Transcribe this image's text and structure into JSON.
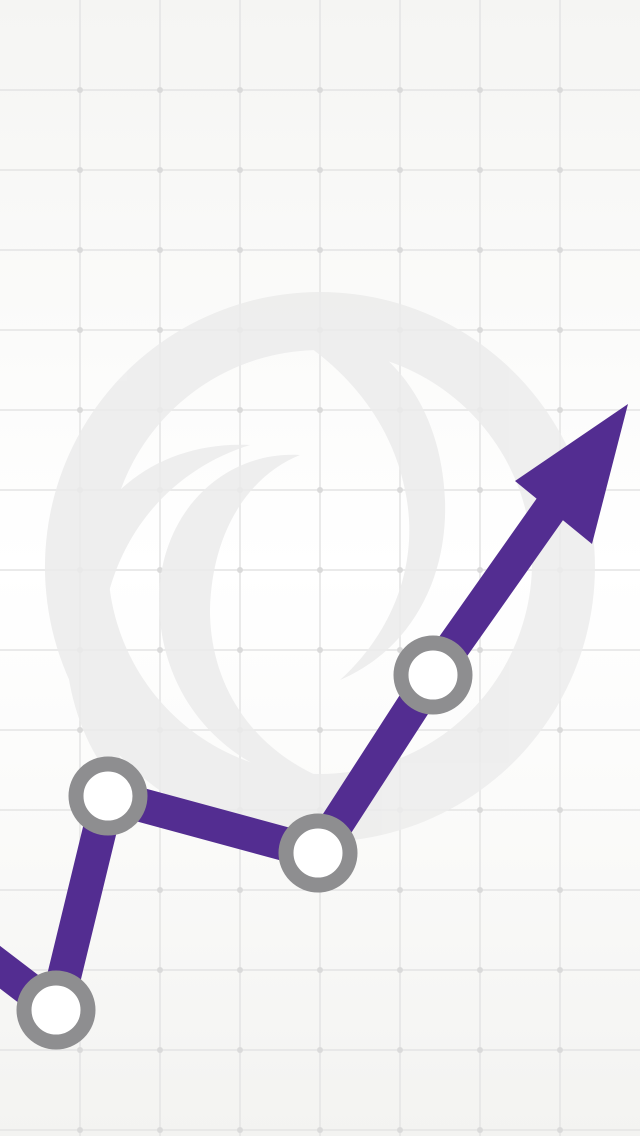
{
  "colors": {
    "background": "#f7f7f5",
    "grid_line": "#e6e6e6",
    "grid_dot": "#dcdcdc",
    "logo_watermark": "#ececec",
    "trend_line": "#532d91",
    "node_ring": "#8e8e90",
    "node_fill": "#ffffff"
  },
  "graphic": {
    "type": "rising trend line with arrowhead over grid",
    "nodes": 4,
    "watermark_icon": "swirl-logo-icon"
  }
}
